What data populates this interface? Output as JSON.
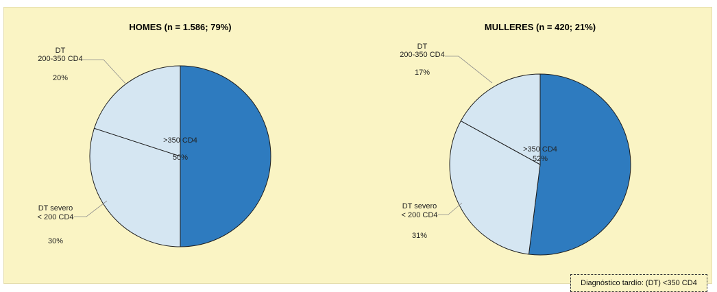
{
  "chart_data": [
    {
      "type": "pie",
      "title": "HOMES  (n = 1.586; 79%)",
      "slices": [
        {
          "label": ">350 CD4",
          "value": 50,
          "value_label": "50%",
          "color": "#2e7bbf"
        },
        {
          "label": "DT severo < 200 CD4",
          "label_lines": [
            "DT severo",
            "< 200 CD4"
          ],
          "value": 30,
          "value_label": "30%",
          "color": "#d5e6f2"
        },
        {
          "label": "DT 200-350 CD4",
          "label_lines": [
            "DT",
            "200-350 CD4"
          ],
          "value": 20,
          "value_label": "20%",
          "color": "#d5e6f2"
        }
      ]
    },
    {
      "type": "pie",
      "title": "MULLERES  (n = 420; 21%)",
      "slices": [
        {
          "label": ">350 CD4",
          "value": 52,
          "value_label": "52%",
          "color": "#2e7bbf"
        },
        {
          "label": "DT severo < 200 CD4",
          "label_lines": [
            "DT severo",
            "< 200 CD4"
          ],
          "value": 31,
          "value_label": "31%",
          "color": "#d5e6f2"
        },
        {
          "label": "DT 200-350 CD4",
          "label_lines": [
            "DT",
            "200-350 CD4"
          ],
          "value": 17,
          "value_label": "17%",
          "color": "#d5e6f2"
        }
      ]
    }
  ],
  "legend_note": "Diagnóstico tardío: (DT)  <350 CD4",
  "colors": {
    "panel_background": "#faf4c4",
    "highlight_slice": "#2e7bbf",
    "light_slice": "#d5e6f2"
  }
}
